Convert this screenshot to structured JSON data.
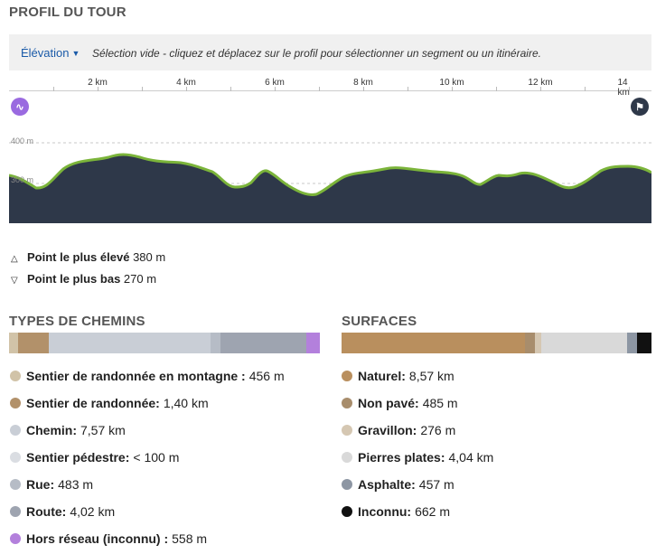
{
  "title": "PROFIL DU TOUR",
  "toolbar": {
    "elevation_label": "Élévation",
    "hint": "Sélection vide - cliquez et déplacez sur le profil pour sélectionner un segment ou un itinéraire."
  },
  "ruler": {
    "labels": [
      "2 km",
      "4 km",
      "6 km",
      "8 km",
      "10 km",
      "12 km",
      "14 km"
    ]
  },
  "chart": {
    "y_labels": [
      "400 m",
      "300 m"
    ],
    "start_icon": "route-start-icon",
    "end_icon": "finish-flag-icon",
    "colors": {
      "fill": "#2e3849",
      "line": "#7bb43a",
      "accent": "#9a6ae0"
    }
  },
  "stats": {
    "highest_label": "Point le plus élevé",
    "highest_value": "380 m",
    "lowest_label": "Point le plus bas",
    "lowest_value": "270 m"
  },
  "way_types": {
    "title": "TYPES DE CHEMINS",
    "items": [
      {
        "label": "Sentier de randonnée en montagne :",
        "value": "456 m",
        "color": "#d1c3a8"
      },
      {
        "label": "Sentier de randonnée:",
        "value": "1,40 km",
        "color": "#b2916a"
      },
      {
        "label": "Chemin:",
        "value": "7,57 km",
        "color": "#c9ced6"
      },
      {
        "label": "Sentier pédestre:",
        "value": "< 100 m",
        "color": "#dadde2"
      },
      {
        "label": "Rue:",
        "value": "483 m",
        "color": "#b6bcc6"
      },
      {
        "label": "Route:",
        "value": "4,02 km",
        "color": "#9ea4b0"
      },
      {
        "label": "Hors réseau (inconnu) :",
        "value": "558 m",
        "color": "#b380dc"
      }
    ]
  },
  "surfaces": {
    "title": "SURFACES",
    "items": [
      {
        "label": "Naturel:",
        "value": "8,57 km",
        "color": "#b98f5e"
      },
      {
        "label": "Non pavé:",
        "value": "485 m",
        "color": "#a88d6c"
      },
      {
        "label": "Gravillon:",
        "value": "276 m",
        "color": "#d5c7b2"
      },
      {
        "label": "Pierres plates:",
        "value": "4,04 km",
        "color": "#d9d9d9"
      },
      {
        "label": "Asphalte:",
        "value": "457 m",
        "color": "#8d96a3"
      },
      {
        "label": "Inconnu:",
        "value": "662 m",
        "color": "#111111"
      }
    ]
  }
}
